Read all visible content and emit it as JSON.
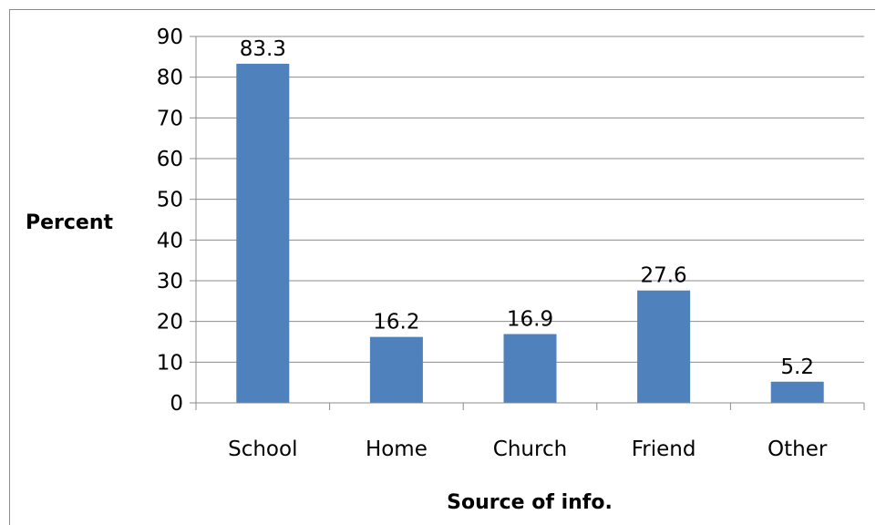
{
  "chart_data": {
    "type": "bar",
    "categories": [
      "School",
      "Home",
      "Church",
      "Friend",
      "Other"
    ],
    "values": [
      83.3,
      16.2,
      16.9,
      27.6,
      5.2
    ],
    "data_labels": [
      "83.3",
      "16.2",
      "16.9",
      "27.6",
      "5.2"
    ],
    "title": "",
    "xlabel": "Source of info.",
    "ylabel": "Percent",
    "ylim": [
      0,
      90
    ],
    "yticks": [
      0,
      10,
      20,
      30,
      40,
      50,
      60,
      70,
      80,
      90
    ],
    "grid": true,
    "legend": "none",
    "bar_color": "#4f81bd"
  }
}
